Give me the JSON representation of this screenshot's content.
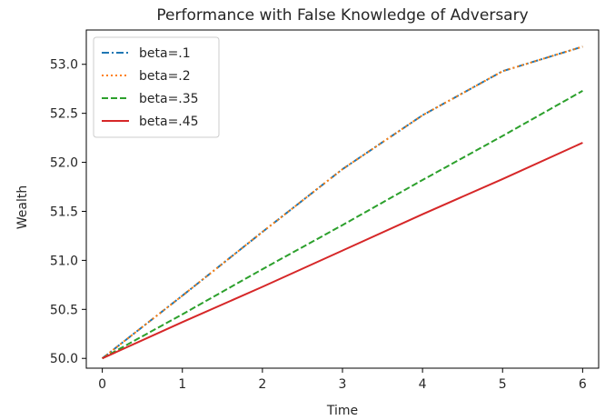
{
  "chart_data": {
    "type": "line",
    "title": "Performance with False Knowledge of Adversary",
    "xlabel": "Time",
    "ylabel": "Wealth",
    "xlim": [
      -0.2,
      6.2
    ],
    "ylim": [
      49.9,
      53.35
    ],
    "xticks": [
      "0",
      "1",
      "2",
      "3",
      "4",
      "5",
      "6"
    ],
    "yticks": [
      "50.0",
      "50.5",
      "51.0",
      "51.5",
      "52.0",
      "52.5",
      "53.0"
    ],
    "grid": false,
    "legend_position": "top-left",
    "x": [
      0,
      1,
      2,
      3,
      4,
      5,
      6
    ],
    "series": [
      {
        "name": "beta=.1",
        "color": "#1f77b4",
        "style": "dashdot",
        "values": [
          50.0,
          50.64,
          51.29,
          51.93,
          52.48,
          52.93,
          53.18
        ]
      },
      {
        "name": "beta=.2",
        "color": "#ff7f0e",
        "style": "dotted",
        "values": [
          50.0,
          50.64,
          51.29,
          51.93,
          52.48,
          52.93,
          53.18
        ]
      },
      {
        "name": "beta=.35",
        "color": "#2ca02c",
        "style": "dashed",
        "values": [
          50.0,
          50.45,
          50.91,
          51.36,
          51.82,
          52.27,
          52.73
        ]
      },
      {
        "name": "beta=.45",
        "color": "#d62728",
        "style": "solid",
        "values": [
          50.0,
          50.37,
          50.73,
          51.1,
          51.47,
          51.83,
          52.2
        ]
      }
    ]
  }
}
